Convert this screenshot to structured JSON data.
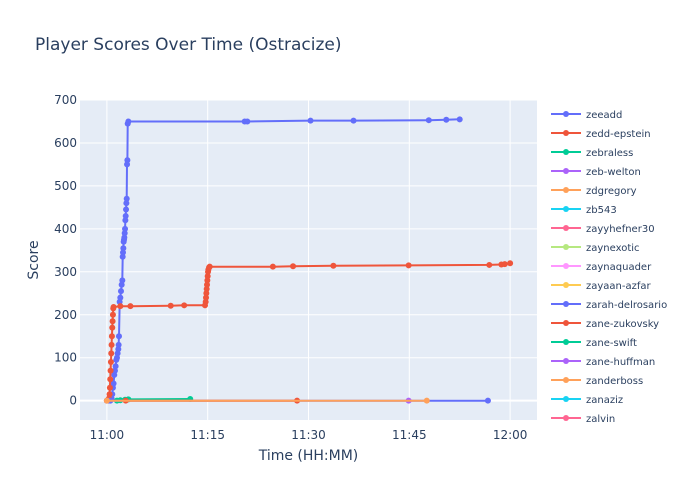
{
  "chart_data": {
    "type": "line",
    "title": "Player Scores Over Time (Ostracize)",
    "xlabel": "Time (HH:MM)",
    "ylabel": "Score",
    "x_ticks": [
      "11:00",
      "11:15",
      "11:30",
      "11:45",
      "12:00"
    ],
    "x_range_minutes": [
      -4,
      64
    ],
    "ylim": [
      -45,
      700
    ],
    "y_ticks": [
      0,
      100,
      200,
      300,
      400,
      500,
      600,
      700
    ],
    "grid": true,
    "legend_position": "right",
    "legend": [
      {
        "name": "zeeadd",
        "color": "#636efa"
      },
      {
        "name": "zedd-epstein",
        "color": "#EF553B"
      },
      {
        "name": "zebraless",
        "color": "#00cc96"
      },
      {
        "name": "zeb-welton",
        "color": "#ab63fa"
      },
      {
        "name": "zdgregory",
        "color": "#FFA15A"
      },
      {
        "name": "zb543",
        "color": "#19d3f3"
      },
      {
        "name": "zayyhefner30",
        "color": "#FF6692"
      },
      {
        "name": "zaynexotic",
        "color": "#B6E880"
      },
      {
        "name": "zaynaquader",
        "color": "#FF97FF"
      },
      {
        "name": "zayaan-azfar",
        "color": "#FECB52"
      },
      {
        "name": "zarah-delrosario",
        "color": "#636efa"
      },
      {
        "name": "zane-zukovsky",
        "color": "#EF553B"
      },
      {
        "name": "zane-swift",
        "color": "#00cc96"
      },
      {
        "name": "zane-huffman",
        "color": "#ab63fa"
      },
      {
        "name": "zanderboss",
        "color": "#FFA15A"
      },
      {
        "name": "zanaziz",
        "color": "#19d3f3"
      },
      {
        "name": "zalvin",
        "color": "#FF6692"
      }
    ],
    "series": [
      {
        "name": "zeeadd",
        "color": "#636efa",
        "points": [
          [
            0.0,
            0
          ],
          [
            0.3,
            0
          ],
          [
            0.5,
            0
          ],
          [
            0.7,
            5
          ],
          [
            0.8,
            15
          ],
          [
            0.9,
            30
          ],
          [
            1.0,
            40
          ],
          [
            1.1,
            60
          ],
          [
            1.2,
            70
          ],
          [
            1.3,
            80
          ],
          [
            1.4,
            95
          ],
          [
            1.5,
            100
          ],
          [
            1.6,
            110
          ],
          [
            1.7,
            120
          ],
          [
            1.75,
            130
          ],
          [
            1.8,
            150
          ],
          [
            1.9,
            230
          ],
          [
            2.0,
            240
          ],
          [
            2.1,
            255
          ],
          [
            2.2,
            270
          ],
          [
            2.3,
            280
          ],
          [
            2.35,
            335
          ],
          [
            2.4,
            345
          ],
          [
            2.45,
            355
          ],
          [
            2.5,
            370
          ],
          [
            2.55,
            375
          ],
          [
            2.6,
            380
          ],
          [
            2.65,
            390
          ],
          [
            2.7,
            400
          ],
          [
            2.75,
            420
          ],
          [
            2.8,
            430
          ],
          [
            2.85,
            445
          ],
          [
            2.9,
            460
          ],
          [
            2.95,
            470
          ],
          [
            3.0,
            550
          ],
          [
            3.05,
            560
          ],
          [
            3.1,
            645
          ],
          [
            3.2,
            650
          ],
          [
            20.5,
            650
          ],
          [
            20.9,
            650
          ],
          [
            30.3,
            652
          ],
          [
            36.7,
            652
          ],
          [
            47.9,
            653
          ],
          [
            50.5,
            654
          ],
          [
            52.5,
            655
          ]
        ]
      },
      {
        "name": "zedd-epstein",
        "color": "#EF553B",
        "points": [
          [
            0.0,
            0
          ],
          [
            0.3,
            5
          ],
          [
            0.4,
            15
          ],
          [
            0.45,
            30
          ],
          [
            0.5,
            50
          ],
          [
            0.55,
            70
          ],
          [
            0.6,
            90
          ],
          [
            0.65,
            110
          ],
          [
            0.7,
            130
          ],
          [
            0.75,
            150
          ],
          [
            0.8,
            170
          ],
          [
            0.85,
            185
          ],
          [
            0.9,
            200
          ],
          [
            0.95,
            215
          ],
          [
            1.0,
            218
          ],
          [
            2.0,
            220
          ],
          [
            3.5,
            220
          ],
          [
            9.5,
            221
          ],
          [
            11.5,
            222
          ],
          [
            14.6,
            222
          ],
          [
            14.7,
            230
          ],
          [
            14.75,
            240
          ],
          [
            14.8,
            250
          ],
          [
            14.85,
            260
          ],
          [
            14.9,
            270
          ],
          [
            14.95,
            280
          ],
          [
            15.0,
            290
          ],
          [
            15.05,
            300
          ],
          [
            15.1,
            305
          ],
          [
            15.2,
            310
          ],
          [
            15.3,
            312
          ],
          [
            24.7,
            312
          ],
          [
            27.7,
            313
          ],
          [
            33.7,
            314
          ],
          [
            44.9,
            315
          ],
          [
            56.9,
            316
          ],
          [
            58.7,
            317
          ],
          [
            59.2,
            318
          ],
          [
            60.0,
            320
          ]
        ]
      },
      {
        "name": "zebraless",
        "color": "#00cc96",
        "points": [
          [
            1.5,
            0
          ],
          [
            2.0,
            1
          ],
          [
            2.7,
            2
          ],
          [
            3.2,
            3
          ],
          [
            12.4,
            4
          ]
        ]
      },
      {
        "name": "zarah-delrosario",
        "color": "#636efa",
        "points": [
          [
            0.5,
            0
          ],
          [
            56.7,
            0
          ]
        ]
      },
      {
        "name": "zane-zukovsky",
        "color": "#EF553B",
        "points": [
          [
            2.8,
            0
          ],
          [
            28.3,
            0
          ]
        ]
      },
      {
        "name": "zane-huffman",
        "color": "#ab63fa",
        "points": [
          [
            44.9,
            0
          ]
        ]
      },
      {
        "name": "zanderboss",
        "color": "#FFA15A",
        "points": [
          [
            0.0,
            0
          ],
          [
            47.6,
            0
          ]
        ]
      }
    ]
  }
}
